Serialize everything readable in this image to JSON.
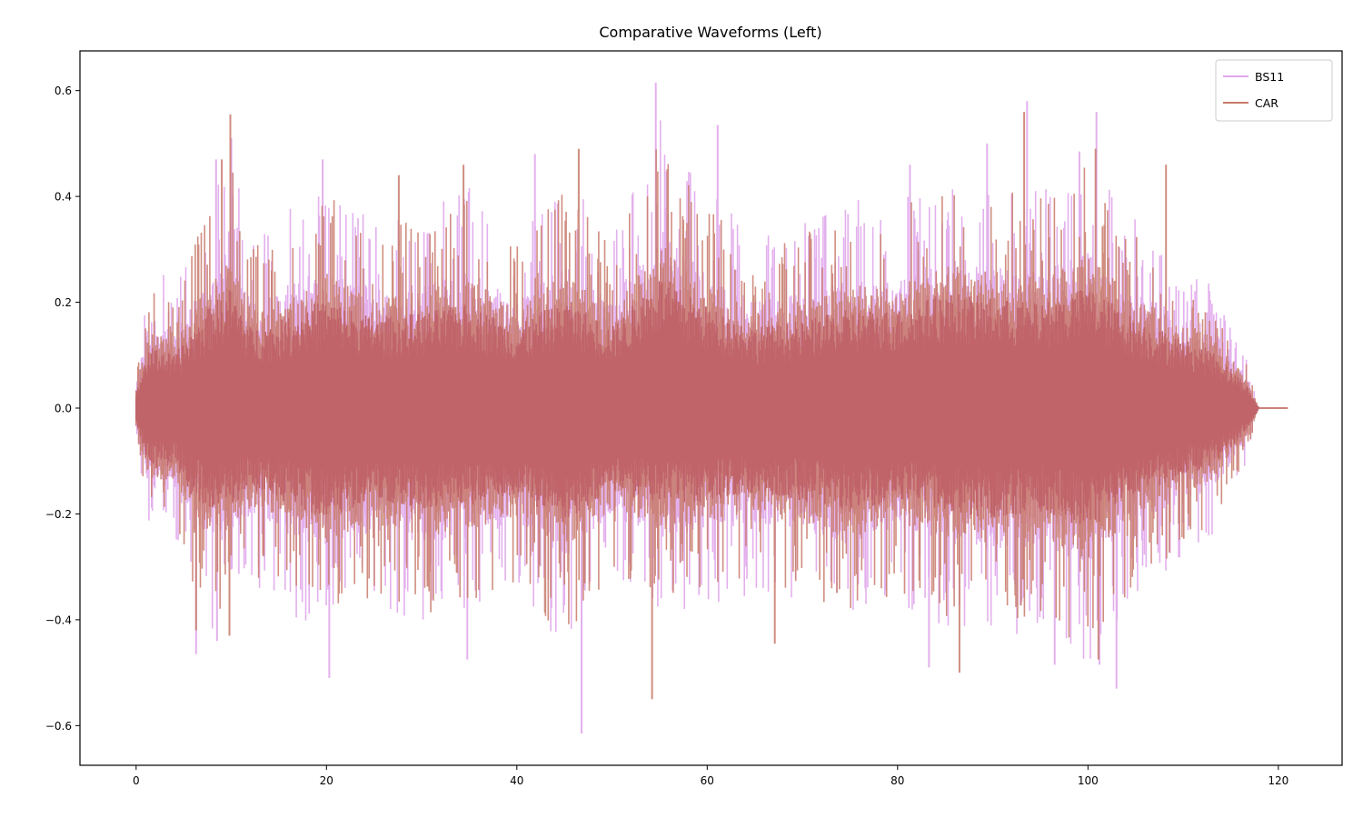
{
  "chart_data": {
    "type": "line",
    "title": "Comparative Waveforms (Left)",
    "xlabel": "",
    "ylabel": "",
    "xlim": [
      -5.9,
      126.7
    ],
    "ylim": [
      -0.675,
      0.675
    ],
    "xticks": [
      0,
      20,
      40,
      60,
      80,
      100,
      120
    ],
    "xtick_labels": [
      "0",
      "20",
      "40",
      "60",
      "80",
      "100",
      "120"
    ],
    "yticks": [
      -0.6,
      -0.4,
      -0.2,
      0.0,
      0.2,
      0.4,
      0.6
    ],
    "ytick_labels": [
      "−0.6",
      "−0.4",
      "−0.2",
      "0.0",
      "0.2",
      "0.4",
      "0.6"
    ],
    "grid": false,
    "legend_position": "upper right",
    "duration_s": 121.0,
    "signal_end_s": 118.0,
    "series": [
      {
        "name": "BS11",
        "color": "#e1a8ec",
        "envelope_x": [
          0,
          1,
          2,
          4,
          6,
          8,
          10,
          12,
          15,
          20,
          25,
          30,
          35,
          40,
          45,
          50,
          55,
          60,
          65,
          70,
          75,
          80,
          85,
          90,
          95,
          100,
          105,
          110,
          113,
          115,
          116.5,
          117.5,
          118,
          121
        ],
        "envelope_pos": [
          0.06,
          0.22,
          0.26,
          0.2,
          0.3,
          0.38,
          0.45,
          0.3,
          0.33,
          0.4,
          0.33,
          0.35,
          0.38,
          0.3,
          0.4,
          0.3,
          0.5,
          0.38,
          0.3,
          0.32,
          0.36,
          0.36,
          0.42,
          0.4,
          0.38,
          0.44,
          0.33,
          0.26,
          0.22,
          0.16,
          0.1,
          0.03,
          0.0,
          0.0
        ],
        "envelope_neg": [
          -0.06,
          -0.2,
          -0.24,
          -0.22,
          -0.34,
          -0.38,
          -0.36,
          -0.3,
          -0.34,
          -0.4,
          -0.34,
          -0.38,
          -0.36,
          -0.32,
          -0.42,
          -0.3,
          -0.36,
          -0.34,
          -0.32,
          -0.34,
          -0.38,
          -0.34,
          -0.38,
          -0.4,
          -0.38,
          -0.44,
          -0.32,
          -0.26,
          -0.22,
          -0.16,
          -0.1,
          -0.03,
          0.0,
          0.0
        ],
        "peaks": [
          [
            6.3,
            -0.465
          ],
          [
            8.4,
            0.47
          ],
          [
            8.5,
            -0.44
          ],
          [
            10.0,
            0.51
          ],
          [
            20.3,
            -0.51
          ],
          [
            19.6,
            0.47
          ],
          [
            34.8,
            -0.475
          ],
          [
            41.9,
            0.48
          ],
          [
            46.8,
            -0.615
          ],
          [
            54.6,
            0.615
          ],
          [
            61.1,
            0.535
          ],
          [
            81.3,
            0.46
          ],
          [
            83.3,
            -0.49
          ],
          [
            89.4,
            0.5
          ],
          [
            93.6,
            0.58
          ],
          [
            96.5,
            -0.485
          ],
          [
            99.1,
            0.485
          ],
          [
            100.9,
            0.56
          ],
          [
            101.2,
            -0.485
          ],
          [
            103.0,
            -0.53
          ],
          [
            117.0,
            0.0
          ]
        ]
      },
      {
        "name": "CAR",
        "color": "#c87a6a",
        "envelope_x": [
          0,
          1,
          2,
          4,
          6,
          8,
          10,
          12,
          15,
          20,
          25,
          30,
          35,
          40,
          45,
          50,
          55,
          60,
          65,
          70,
          75,
          80,
          85,
          90,
          95,
          100,
          105,
          110,
          113,
          115,
          116.5,
          117.5,
          118,
          121
        ],
        "envelope_pos": [
          0.05,
          0.18,
          0.22,
          0.18,
          0.28,
          0.36,
          0.42,
          0.28,
          0.3,
          0.38,
          0.31,
          0.33,
          0.36,
          0.28,
          0.38,
          0.28,
          0.46,
          0.35,
          0.28,
          0.3,
          0.34,
          0.34,
          0.4,
          0.38,
          0.36,
          0.42,
          0.31,
          0.24,
          0.2,
          0.14,
          0.09,
          0.03,
          0.0,
          0.0
        ],
        "envelope_neg": [
          -0.05,
          -0.17,
          -0.21,
          -0.2,
          -0.31,
          -0.36,
          -0.34,
          -0.28,
          -0.32,
          -0.38,
          -0.32,
          -0.36,
          -0.34,
          -0.3,
          -0.4,
          -0.28,
          -0.34,
          -0.32,
          -0.3,
          -0.32,
          -0.36,
          -0.32,
          -0.36,
          -0.38,
          -0.36,
          -0.42,
          -0.3,
          -0.24,
          -0.2,
          -0.14,
          -0.09,
          -0.03,
          0.0,
          0.0
        ],
        "peaks": [
          [
            6.3,
            -0.42
          ],
          [
            9.0,
            0.47
          ],
          [
            9.9,
            0.555
          ],
          [
            9.8,
            -0.43
          ],
          [
            27.6,
            0.44
          ],
          [
            34.4,
            0.46
          ],
          [
            46.5,
            0.49
          ],
          [
            54.2,
            -0.55
          ],
          [
            67.1,
            -0.445
          ],
          [
            86.5,
            -0.5
          ],
          [
            93.3,
            0.56
          ],
          [
            100.8,
            0.49
          ],
          [
            101.1,
            -0.475
          ],
          [
            108.2,
            0.46
          ]
        ]
      }
    ],
    "overlap_color": "#c0646a"
  }
}
